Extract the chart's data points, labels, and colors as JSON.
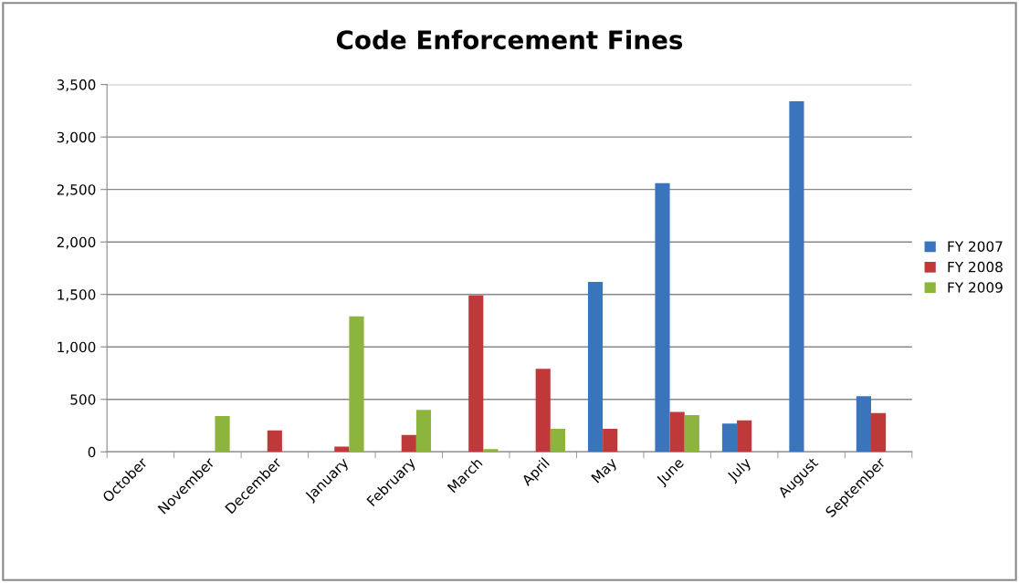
{
  "chart_data": {
    "type": "bar",
    "title": "Code Enforcement Fines",
    "categories": [
      "October",
      "November",
      "December",
      "January",
      "February",
      "March",
      "April",
      "May",
      "June",
      "July",
      "August",
      "September"
    ],
    "series": [
      {
        "name": "FY 2007",
        "color": "#3a74bd",
        "values": [
          null,
          null,
          null,
          null,
          null,
          null,
          null,
          1620,
          2560,
          270,
          3340,
          530
        ]
      },
      {
        "name": "FY 2008",
        "color": "#c0393a",
        "values": [
          null,
          null,
          205,
          50,
          160,
          1490,
          790,
          220,
          380,
          300,
          null,
          370
        ]
      },
      {
        "name": "FY 2009",
        "color": "#8db43c",
        "values": [
          null,
          340,
          null,
          1290,
          400,
          25,
          220,
          null,
          350,
          null,
          null,
          null
        ]
      }
    ],
    "ylim": [
      0,
      3500
    ],
    "yticks": [
      {
        "value": 0,
        "label": "0"
      },
      {
        "value": 500,
        "label": "500"
      },
      {
        "value": 1000,
        "label": "1,000"
      },
      {
        "value": 1500,
        "label": "1,500"
      },
      {
        "value": 2000,
        "label": "2,000"
      },
      {
        "value": 2500,
        "label": "2,500"
      },
      {
        "value": 3000,
        "label": "3,000"
      },
      {
        "value": 3500,
        "label": "3,500"
      }
    ],
    "grid": "y",
    "legend": "right"
  }
}
